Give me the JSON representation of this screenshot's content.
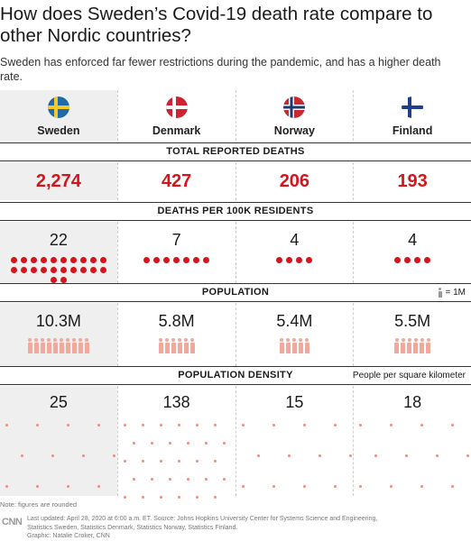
{
  "title": "How does Sweden’s Covid-19 death rate compare to other Nordic countries?",
  "subtitle": "Sweden has enforced far fewer restrictions during the pandemic, and has a higher death rate.",
  "colors": {
    "accent_red": "#d4161c",
    "person_pink": "#f2a99b",
    "highlight_bg": "#efefef"
  },
  "countries": [
    {
      "name": "Sweden",
      "flag_icon": "sweden-flag-icon",
      "total_deaths": "2,274",
      "deaths_per_100k": "22",
      "population": "10.3M",
      "density": "25"
    },
    {
      "name": "Denmark",
      "flag_icon": "denmark-flag-icon",
      "total_deaths": "427",
      "deaths_per_100k": "7",
      "population": "5.8M",
      "density": "138"
    },
    {
      "name": "Norway",
      "flag_icon": "norway-flag-icon",
      "total_deaths": "206",
      "deaths_per_100k": "4",
      "population": "5.4M",
      "density": "15"
    },
    {
      "name": "Finland",
      "flag_icon": "finland-flag-icon",
      "total_deaths": "193",
      "deaths_per_100k": "4",
      "population": "5.5M",
      "density": "18"
    }
  ],
  "sections": {
    "total_deaths": "TOTAL REPORTED DEATHS",
    "deaths_per_100k": "DEATHS PER 100K RESIDENTS",
    "population": "POPULATION",
    "population_legend": "= 1M",
    "density": "POPULATION DENSITY",
    "density_note": "People per square kilometer"
  },
  "footer": {
    "note": "Note: figures are rounded",
    "logo": "CNN",
    "last_updated": "Last updated: April 28, 2020 at 6:00 a.m. ET. Source: Johns Hopkins University Center for Systems Science and Engineering,",
    "sources": "Statistics Sweden, Statistics Denmark, Statistics Norway, Statistics Finland.",
    "graphic": "Graphic: Natalie Croker, CNN"
  }
}
